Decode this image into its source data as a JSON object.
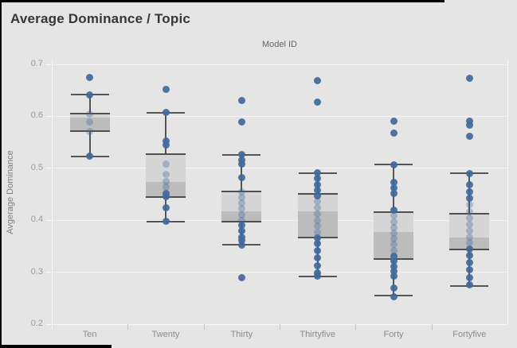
{
  "window": {
    "title": "Average Dominance / Topic"
  },
  "chart_data": {
    "type": "boxplot",
    "title": "Average Dominance / Topic",
    "column_header": "Model ID",
    "ylabel": "Avgerage Dominance",
    "xlabel": "",
    "ylim": [
      0.2,
      0.7
    ],
    "y_ticks": [
      0.7,
      0.6,
      0.5,
      0.4,
      0.3,
      0.2
    ],
    "grid": "horizontal-only",
    "legend": "none",
    "categories": [
      "Ten",
      "Twenty",
      "Thirty",
      "Thirtyfive",
      "Forty",
      "Fortyfive"
    ],
    "series": [
      {
        "category": "Ten",
        "whisker_low": 0.523,
        "q1": 0.572,
        "median": 0.597,
        "q3": 0.605,
        "whisker_high": 0.642,
        "points_solid": [
          0.675,
          0.641,
          0.523
        ],
        "points_faint": [
          0.604,
          0.589,
          0.571
        ]
      },
      {
        "category": "Twenty",
        "whisker_low": 0.397,
        "q1": 0.445,
        "median": 0.474,
        "q3": 0.527,
        "whisker_high": 0.607,
        "points_solid": [
          0.652,
          0.607,
          0.553,
          0.545,
          0.452,
          0.445,
          0.424,
          0.398
        ],
        "points_faint": [
          0.508,
          0.488,
          0.474,
          0.463
        ]
      },
      {
        "category": "Thirty",
        "whisker_low": 0.353,
        "q1": 0.397,
        "median": 0.417,
        "q3": 0.456,
        "whisker_high": 0.526,
        "points_solid": [
          0.631,
          0.589,
          0.527,
          0.516,
          0.508,
          0.482,
          0.39,
          0.379,
          0.368,
          0.361,
          0.352,
          0.29
        ],
        "points_faint": [
          0.455,
          0.444,
          0.433,
          0.422,
          0.411,
          0.4
        ]
      },
      {
        "category": "Thirtyfive",
        "whisker_low": 0.292,
        "q1": 0.366,
        "median": 0.417,
        "q3": 0.451,
        "whisker_high": 0.491,
        "points_solid": [
          0.669,
          0.627,
          0.491,
          0.48,
          0.469,
          0.457,
          0.447,
          0.366,
          0.355,
          0.341,
          0.327,
          0.313,
          0.299,
          0.292
        ],
        "points_faint": [
          0.436,
          0.424,
          0.412,
          0.4,
          0.389,
          0.377
        ]
      },
      {
        "category": "Forty",
        "whisker_low": 0.255,
        "q1": 0.326,
        "median": 0.377,
        "q3": 0.416,
        "whisker_high": 0.507,
        "points_solid": [
          0.591,
          0.568,
          0.507,
          0.473,
          0.462,
          0.452,
          0.419,
          0.331,
          0.321,
          0.311,
          0.301,
          0.292,
          0.27,
          0.253
        ],
        "points_faint": [
          0.408,
          0.397,
          0.386,
          0.375,
          0.364,
          0.353,
          0.342
        ]
      },
      {
        "category": "Fortyfive",
        "whisker_low": 0.274,
        "q1": 0.344,
        "median": 0.367,
        "q3": 0.412,
        "whisker_high": 0.49,
        "points_solid": [
          0.674,
          0.591,
          0.583,
          0.561,
          0.49,
          0.468,
          0.455,
          0.442,
          0.344,
          0.332,
          0.318,
          0.304,
          0.29,
          0.275
        ],
        "points_faint": [
          0.43,
          0.417,
          0.404,
          0.392,
          0.38,
          0.368,
          0.356
        ]
      }
    ],
    "colors": {
      "background": "#e5e5e5",
      "point": "#41699b",
      "box_light": "#d5d5d5",
      "box_dark": "#bcbcbc",
      "box_border": "#4f4f4f",
      "whisker": "#555555",
      "gridline": "#f4f4f4",
      "title_text": "#363636",
      "muted_text": "#8a8a8a"
    }
  }
}
